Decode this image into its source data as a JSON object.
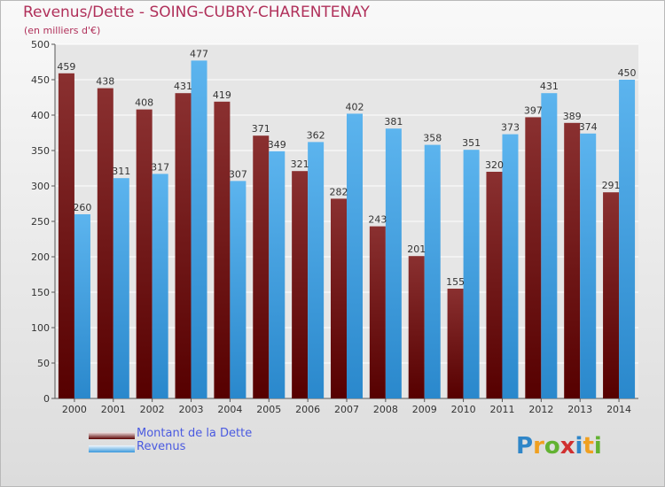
{
  "title": "Revenus/Dette - SOING-CUBRY-CHARENTENAY",
  "subtitle": "(en milliers d'€)",
  "logo": {
    "letters": [
      "P",
      "r",
      "o",
      "x",
      "i",
      "t",
      "i"
    ],
    "colors": [
      "#2f86c8",
      "#f0a020",
      "#62b232",
      "#d03030",
      "#2f86c8",
      "#f0a020",
      "#62b232"
    ]
  },
  "chart_data": {
    "type": "bar",
    "title": "Revenus/Dette - SOING-CUBRY-CHARENTENAY",
    "ylabel": "(en milliers d'€)",
    "xlabel": "",
    "ylim": [
      0,
      500
    ],
    "yticks": [
      0,
      50,
      100,
      150,
      200,
      250,
      300,
      350,
      400,
      450,
      500
    ],
    "grid": true,
    "legend_position": "bottom-left",
    "categories": [
      "2000",
      "2001",
      "2002",
      "2003",
      "2004",
      "2005",
      "2006",
      "2007",
      "2008",
      "2009",
      "2010",
      "2011",
      "2012",
      "2013",
      "2014"
    ],
    "series": [
      {
        "name": "Montant de la Dette",
        "color": "#7b2020",
        "values": [
          459,
          438,
          408,
          431,
          419,
          371,
          321,
          282,
          243,
          201,
          155,
          320,
          397,
          389,
          291
        ]
      },
      {
        "name": "Revenus",
        "color": "#4aa3e2",
        "values": [
          260,
          311,
          317,
          477,
          307,
          349,
          362,
          402,
          381,
          358,
          351,
          373,
          431,
          374,
          450
        ]
      }
    ]
  }
}
